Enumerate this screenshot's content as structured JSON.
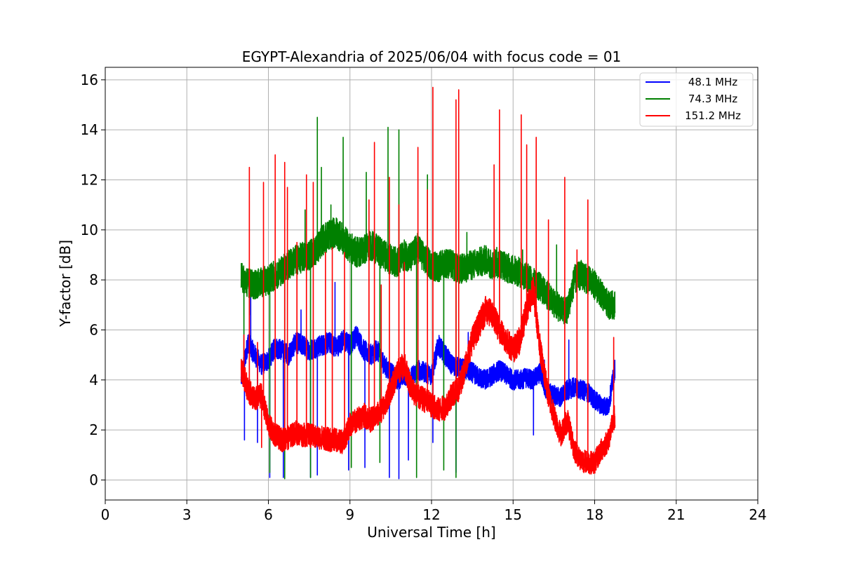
{
  "chart_data": {
    "type": "line",
    "title": "EGYPT-Alexandria of 2025/06/04 with focus code = 01",
    "xlabel": "Universal Time [h]",
    "ylabel": "Y-factor [dB]",
    "xlim": [
      0,
      24
    ],
    "ylim": [
      -0.8,
      16.5
    ],
    "xticks": [
      0,
      3,
      6,
      9,
      12,
      15,
      18,
      21,
      24
    ],
    "yticks": [
      0,
      2,
      4,
      6,
      8,
      10,
      12,
      14,
      16
    ],
    "grid": true,
    "legend_position": "top-right",
    "series": [
      {
        "name": "48.1 MHz",
        "color": "#0000ff",
        "x": [
          5.0,
          5.25,
          5.5,
          5.75,
          6.0,
          6.25,
          6.5,
          6.75,
          7.0,
          7.25,
          7.5,
          7.75,
          8.0,
          8.25,
          8.5,
          8.75,
          9.0,
          9.25,
          9.5,
          9.75,
          10.0,
          10.25,
          10.5,
          10.75,
          11.0,
          11.25,
          11.5,
          11.75,
          12.0,
          12.25,
          12.5,
          12.75,
          13.0,
          13.25,
          13.5,
          13.75,
          14.0,
          14.25,
          14.5,
          14.75,
          15.0,
          15.25,
          15.5,
          15.75,
          16.0,
          16.25,
          16.5,
          16.75,
          17.0,
          17.25,
          17.5,
          17.75,
          18.0,
          18.25,
          18.5,
          18.75
        ],
        "y": [
          4.0,
          5.5,
          5.0,
          4.6,
          4.8,
          5.3,
          5.2,
          5.0,
          5.5,
          5.4,
          5.2,
          5.3,
          5.4,
          5.5,
          5.3,
          5.6,
          5.4,
          5.8,
          5.2,
          5.0,
          5.2,
          4.6,
          4.3,
          4.0,
          4.2,
          4.1,
          4.4,
          4.3,
          4.2,
          5.4,
          5.0,
          4.6,
          4.5,
          4.4,
          4.3,
          4.1,
          4.0,
          4.2,
          4.4,
          4.2,
          4.0,
          4.0,
          4.1,
          4.0,
          4.3,
          3.5,
          3.4,
          3.3,
          3.6,
          3.7,
          3.6,
          3.5,
          3.2,
          3.0,
          2.9,
          4.5
        ],
        "spikes": [
          [
            5.12,
            1.6
          ],
          [
            5.35,
            7.5
          ],
          [
            5.6,
            1.5
          ],
          [
            6.05,
            0.1
          ],
          [
            6.55,
            0.1
          ],
          [
            7.2,
            6.8
          ],
          [
            7.55,
            0.1
          ],
          [
            7.8,
            0.2
          ],
          [
            8.45,
            7.9
          ],
          [
            8.95,
            0.4
          ],
          [
            9.55,
            0.5
          ],
          [
            10.45,
            0.1
          ],
          [
            10.8,
            0.05
          ],
          [
            11.15,
            0.8
          ],
          [
            12.05,
            1.5
          ],
          [
            12.9,
            0.3
          ],
          [
            13.35,
            5.9
          ],
          [
            15.75,
            1.8
          ],
          [
            16.15,
            4.8
          ],
          [
            17.05,
            5.6
          ]
        ]
      },
      {
        "name": "74.3 MHz",
        "color": "#008000",
        "x": [
          5.0,
          5.25,
          5.5,
          5.75,
          6.0,
          6.25,
          6.5,
          6.75,
          7.0,
          7.25,
          7.5,
          7.75,
          8.0,
          8.25,
          8.5,
          8.75,
          9.0,
          9.25,
          9.5,
          9.75,
          10.0,
          10.25,
          10.5,
          10.75,
          11.0,
          11.25,
          11.5,
          11.75,
          12.0,
          12.25,
          12.5,
          12.75,
          13.0,
          13.25,
          13.5,
          13.75,
          14.0,
          14.25,
          14.5,
          14.75,
          15.0,
          15.25,
          15.5,
          15.75,
          16.0,
          16.25,
          16.5,
          16.75,
          17.0,
          17.25,
          17.5,
          17.75,
          18.0,
          18.25,
          18.5,
          18.75
        ],
        "y": [
          8.1,
          7.9,
          7.8,
          7.9,
          8.0,
          8.2,
          8.4,
          8.6,
          8.8,
          8.9,
          9.0,
          9.2,
          9.6,
          9.8,
          9.9,
          9.6,
          9.3,
          9.1,
          9.2,
          9.4,
          9.2,
          9.0,
          8.8,
          8.7,
          9.0,
          8.9,
          9.3,
          8.8,
          8.6,
          8.5,
          8.7,
          8.6,
          8.4,
          8.5,
          8.6,
          8.7,
          8.8,
          8.6,
          8.7,
          8.5,
          8.4,
          8.3,
          8.1,
          7.9,
          7.7,
          7.4,
          7.1,
          6.8,
          6.8,
          8.0,
          8.2,
          8.0,
          7.8,
          7.4,
          7.0,
          7.0
        ],
        "spikes": [
          [
            5.1,
            4.8
          ],
          [
            5.3,
            6.6
          ],
          [
            6.05,
            0.3
          ],
          [
            6.6,
            0.05
          ],
          [
            7.35,
            10.8
          ],
          [
            7.55,
            0.1
          ],
          [
            7.8,
            14.5
          ],
          [
            7.95,
            12.5
          ],
          [
            8.3,
            11.0
          ],
          [
            8.75,
            13.7
          ],
          [
            9.05,
            0.5
          ],
          [
            9.6,
            12.3
          ],
          [
            10.1,
            0.7
          ],
          [
            10.4,
            14.1
          ],
          [
            10.8,
            14.0
          ],
          [
            11.45,
            0.1
          ],
          [
            11.85,
            12.2
          ],
          [
            12.45,
            0.4
          ],
          [
            12.9,
            0.1
          ],
          [
            13.3,
            9.9
          ],
          [
            14.4,
            9.3
          ],
          [
            15.35,
            9.2
          ],
          [
            16.6,
            9.4
          ],
          [
            17.25,
            8.5
          ]
        ]
      },
      {
        "name": "151.2 MHz",
        "color": "#ff0000",
        "x": [
          5.0,
          5.25,
          5.5,
          5.75,
          6.0,
          6.25,
          6.5,
          6.75,
          7.0,
          7.25,
          7.5,
          7.75,
          8.0,
          8.25,
          8.5,
          8.75,
          9.0,
          9.25,
          9.5,
          9.75,
          10.0,
          10.25,
          10.5,
          10.75,
          11.0,
          11.25,
          11.5,
          11.75,
          12.0,
          12.25,
          12.5,
          12.75,
          13.0,
          13.25,
          13.5,
          13.75,
          14.0,
          14.25,
          14.5,
          14.75,
          15.0,
          15.25,
          15.5,
          15.75,
          16.0,
          16.25,
          16.5,
          16.75,
          17.0,
          17.25,
          17.5,
          17.75,
          18.0,
          18.25,
          18.5,
          18.75
        ],
        "y": [
          4.5,
          3.6,
          3.2,
          3.4,
          2.2,
          1.8,
          1.6,
          1.7,
          1.9,
          1.8,
          1.8,
          1.7,
          1.7,
          1.6,
          1.6,
          1.5,
          2.2,
          2.4,
          2.6,
          2.4,
          2.6,
          2.9,
          3.6,
          4.3,
          4.6,
          3.7,
          3.3,
          3.2,
          3.0,
          2.8,
          2.9,
          3.4,
          3.6,
          4.6,
          5.6,
          6.2,
          6.8,
          6.6,
          6.0,
          5.6,
          5.2,
          5.6,
          6.8,
          7.6,
          5.2,
          3.6,
          2.6,
          1.8,
          2.4,
          1.2,
          0.8,
          0.7,
          0.7,
          1.2,
          1.6,
          2.6
        ],
        "spikes": [
          [
            5.1,
            5.8
          ],
          [
            5.3,
            12.5
          ],
          [
            5.6,
            5.5
          ],
          [
            5.75,
            1.3
          ],
          [
            5.82,
            11.9
          ],
          [
            6.25,
            13.0
          ],
          [
            6.6,
            12.7
          ],
          [
            6.7,
            11.7
          ],
          [
            7.05,
            9.5
          ],
          [
            7.4,
            12.2
          ],
          [
            7.65,
            11.9
          ],
          [
            8.1,
            9.1
          ],
          [
            8.35,
            9.3
          ],
          [
            8.8,
            9.1
          ],
          [
            9.7,
            11.2
          ],
          [
            9.9,
            13.5
          ],
          [
            10.15,
            7.8
          ],
          [
            10.45,
            12.1
          ],
          [
            10.8,
            11.0
          ],
          [
            11.0,
            8.7
          ],
          [
            11.5,
            13.3
          ],
          [
            11.85,
            11.6
          ],
          [
            12.05,
            15.7
          ],
          [
            12.9,
            15.2
          ],
          [
            13.0,
            15.6
          ],
          [
            14.3,
            12.6
          ],
          [
            14.5,
            14.8
          ],
          [
            15.3,
            14.6
          ],
          [
            15.5,
            13.4
          ],
          [
            15.85,
            13.7
          ],
          [
            16.3,
            10.4
          ],
          [
            16.9,
            12.1
          ],
          [
            17.35,
            9.2
          ],
          [
            17.75,
            11.2
          ],
          [
            18.7,
            5.7
          ]
        ]
      }
    ]
  }
}
